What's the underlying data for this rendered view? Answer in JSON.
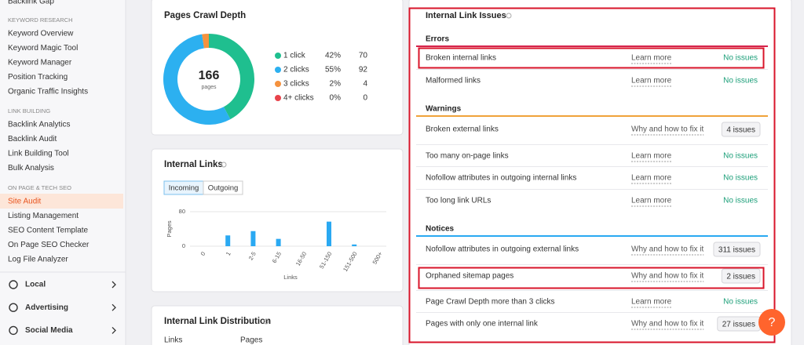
{
  "sidebar": {
    "top_item": "Backlink Gap",
    "sections": [
      {
        "heading": "KEYWORD RESEARCH",
        "items": [
          "Keyword Overview",
          "Keyword Magic Tool",
          "Keyword Manager",
          "Position Tracking",
          "Organic Traffic Insights"
        ]
      },
      {
        "heading": "LINK BUILDING",
        "items": [
          "Backlink Analytics",
          "Backlink Audit",
          "Link Building Tool",
          "Bulk Analysis"
        ]
      },
      {
        "heading": "ON PAGE & TECH SEO",
        "items": [
          "Site Audit",
          "Listing Management",
          "SEO Content Template",
          "On Page SEO Checker",
          "Log File Analyzer"
        ]
      }
    ],
    "groups": [
      "Local",
      "Advertising",
      "Social Media"
    ]
  },
  "crawl_depth": {
    "title": "Pages Crawl Depth",
    "total": "166",
    "total_label": "pages",
    "rows": [
      {
        "label": "1 click",
        "percent": "42%",
        "count": 70,
        "color": "#1fbf8f"
      },
      {
        "label": "2 clicks",
        "percent": "55%",
        "count": 92,
        "color": "#2cb0f0"
      },
      {
        "label": "3 clicks",
        "percent": "2%",
        "count": 4,
        "color": "#f5923e"
      },
      {
        "label": "4+ clicks",
        "percent": "0%",
        "count": 0,
        "color": "#e8434b"
      }
    ]
  },
  "internal_links": {
    "title": "Internal Links",
    "tabs": [
      "Incoming",
      "Outgoing"
    ],
    "chart": {
      "type": "bar",
      "y_label": "Pages",
      "x_label": "Links",
      "categories": [
        "0",
        "1",
        "2-5",
        "6-15",
        "16-50",
        "51-150",
        "151-500",
        "500+"
      ],
      "values": [
        0,
        25,
        35,
        17,
        0,
        57,
        4,
        0
      ],
      "color": "#2aa9f2",
      "ylim": [
        0,
        80
      ],
      "yticks": [
        0,
        80
      ]
    }
  },
  "distribution": {
    "title": "Internal Link Distribution",
    "columns": [
      "Links",
      "Pages"
    ]
  },
  "issues": {
    "title": "Internal Link Issues",
    "groups": [
      {
        "name": "Errors",
        "color": "#d6224a",
        "items": [
          {
            "name": "Broken internal links",
            "link": "Learn more",
            "status": "No issues"
          },
          {
            "name": "Malformed links",
            "link": "Learn more",
            "status": "No issues"
          }
        ]
      },
      {
        "name": "Warnings",
        "color": "#f0a23a",
        "items": [
          {
            "name": "Broken external links",
            "link": "Why and how to fix it",
            "status": "4 issues"
          },
          {
            "name": "Too many on-page links",
            "link": "Learn more",
            "status": "No issues"
          },
          {
            "name": "Nofollow attributes in outgoing internal links",
            "link": "Learn more",
            "status": "No issues"
          },
          {
            "name": "Too long link URLs",
            "link": "Learn more",
            "status": "No issues"
          }
        ]
      },
      {
        "name": "Notices",
        "color": "#2aa9f2",
        "items": [
          {
            "name": "Nofollow attributes in outgoing external links",
            "link": "Why and how to fix it",
            "status": "311 issues"
          },
          {
            "name": "Orphaned sitemap pages",
            "link": "Why and how to fix it",
            "status": "2 issues"
          },
          {
            "name": "Page Crawl Depth more than 3 clicks",
            "link": "Learn more",
            "status": "No issues"
          },
          {
            "name": "Pages with only one internal link",
            "link": "Why and how to fix it",
            "status": "27 issues"
          }
        ]
      }
    ]
  },
  "help_button": "?"
}
